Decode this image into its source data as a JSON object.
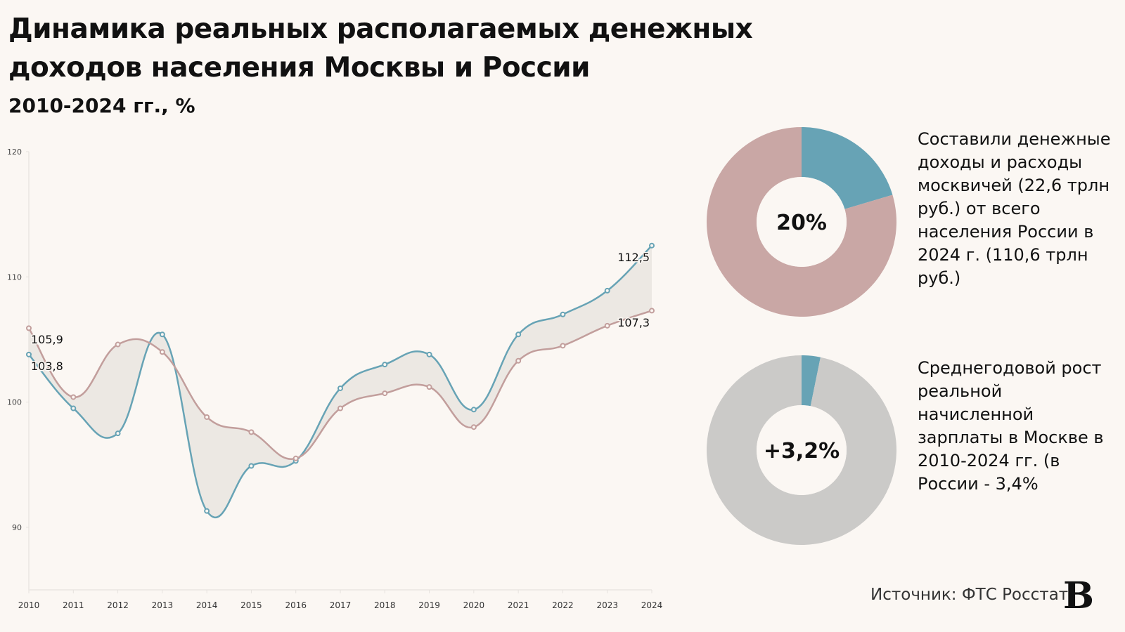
{
  "header": {
    "title": "Динамика реальных располагаемых денежных доходов населения Москвы и России",
    "subtitle": "2010-2024 гг., %"
  },
  "chart_data": [
    {
      "type": "line",
      "x": [
        "2010",
        "2011",
        "2012",
        "2013",
        "2014",
        "2015",
        "2016",
        "2017",
        "2018",
        "2019",
        "2020",
        "2021",
        "2022",
        "2023",
        "2024"
      ],
      "series": [
        {
          "key": "moscow",
          "color": "#67a3b5",
          "values": [
            103.8,
            99.5,
            97.5,
            105.4,
            91.3,
            94.9,
            95.3,
            101.1,
            103.0,
            103.8,
            99.4,
            105.4,
            107.0,
            108.9,
            112.5
          ]
        },
        {
          "key": "russia",
          "color": "#c29e9c",
          "values": [
            105.9,
            100.4,
            104.6,
            104.0,
            98.8,
            97.6,
            95.5,
            99.5,
            100.7,
            101.2,
            98.0,
            103.3,
            104.5,
            106.1,
            107.3
          ]
        }
      ],
      "data_labels": {
        "moscow_start": "103,8",
        "moscow_end": "112,5",
        "russia_start": "105,9",
        "russia_end": "107,3"
      },
      "fill_between_color": "#ece8e3",
      "yticks": [
        "90",
        "100",
        "110",
        "120"
      ],
      "ylim": [
        85,
        120
      ],
      "grid": false
    },
    {
      "type": "pie",
      "center_label": "20%",
      "values": [
        20.4,
        79.6
      ],
      "colors": [
        "#67a3b5",
        "#c9a7a5"
      ]
    },
    {
      "type": "pie",
      "center_label": "+3,2%",
      "values": [
        3.2,
        96.8
      ],
      "colors": [
        "#67a3b5",
        "#cbcac8"
      ]
    }
  ],
  "notes": {
    "top": "Составили денежные доходы и расходы москвичей (22,6 трлн руб.) от всего населения России в 2024 г. (110,6 трлн руб.)",
    "bottom": "Среднегодовой рост реальной начисленной зарплаты в Москве в 2010-2024 гг. (в России - 3,4%"
  },
  "footer": {
    "source": "Источник: ФТС Росстат",
    "logo": "В"
  }
}
